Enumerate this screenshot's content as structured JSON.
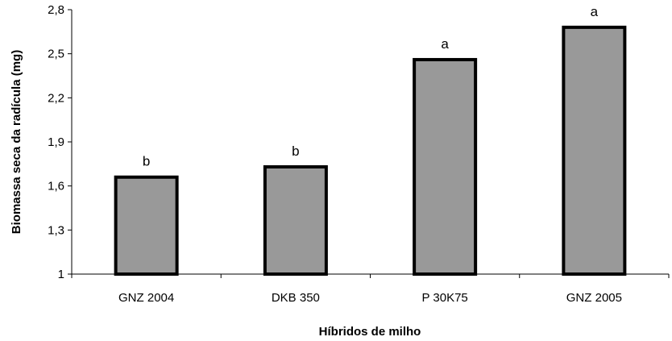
{
  "chart_data": {
    "type": "bar",
    "categories": [
      "GNZ 2004",
      "DKB 350",
      "P 30K75",
      "GNZ 2005"
    ],
    "values": [
      1.66,
      1.73,
      2.46,
      2.68
    ],
    "data_labels": [
      "b",
      "b",
      "a",
      "a"
    ],
    "xlabel": "Híbridos de milho",
    "ylabel": "Biomassa seca da radícula (mg)",
    "ylim": [
      1,
      2.8
    ],
    "yticks": [
      1,
      1.3,
      1.6,
      1.9,
      2.2,
      2.5,
      2.8
    ],
    "ytick_labels": [
      "1",
      "1,3",
      "1,6",
      "1,9",
      "2,2",
      "2,5",
      "2,8"
    ],
    "grid": false,
    "colors": {
      "bar_fill": "#999999",
      "bar_stroke": "#000000"
    }
  }
}
